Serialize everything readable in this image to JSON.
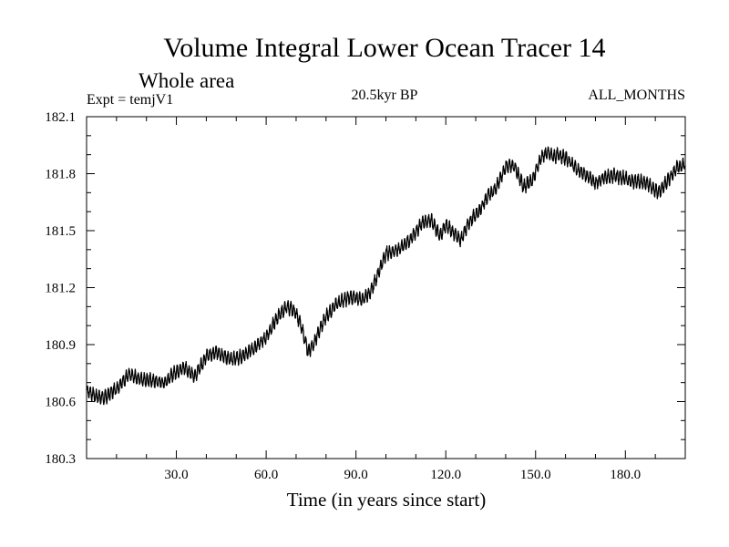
{
  "chart_data": {
    "type": "line",
    "title": "Volume Integral Lower Ocean Tracer 14",
    "subtitle": "Whole area",
    "experiment": "Expt = temjV1",
    "period": "20.5kyr BP",
    "months": "ALL_MONTHS",
    "xlabel": "Time (in years since start)",
    "ylabel": "",
    "xlim": [
      0,
      200
    ],
    "ylim": [
      180.3,
      182.1
    ],
    "x_ticks": [
      30,
      60,
      90,
      120,
      150,
      180
    ],
    "x_tick_labels": [
      "30.0",
      "60.0",
      "90.0",
      "120.0",
      "150.0",
      "180.0"
    ],
    "y_ticks": [
      180.3,
      180.6,
      180.9,
      181.2,
      181.5,
      181.8,
      182.1
    ],
    "y_tick_labels": [
      "180.3",
      "180.6",
      "180.9",
      "181.2",
      "181.5",
      "181.8",
      "182.1"
    ],
    "legend": "none",
    "grid": false,
    "series": [
      {
        "name": "Volume Integral Lower Ocean Tracer 14",
        "seasonal_amplitude": 0.03,
        "x": [
          0,
          3,
          6,
          10,
          14,
          18,
          22,
          26,
          30,
          33,
          36,
          40,
          44,
          48,
          52,
          56,
          60,
          64,
          67,
          70,
          72,
          74,
          76,
          80,
          84,
          88,
          92,
          95,
          100,
          104,
          108,
          112,
          115,
          118,
          120,
          122,
          125,
          128,
          131,
          134,
          137,
          140,
          143,
          146,
          149,
          152,
          154,
          156,
          158,
          161,
          164,
          167,
          170,
          173,
          176,
          179,
          182,
          185,
          188,
          191,
          194,
          197,
          200
        ],
        "y": [
          180.66,
          180.63,
          180.62,
          180.67,
          180.74,
          180.72,
          180.71,
          180.7,
          180.76,
          180.78,
          180.73,
          180.84,
          180.86,
          180.82,
          180.84,
          180.88,
          180.94,
          181.05,
          181.1,
          181.07,
          180.98,
          180.86,
          180.91,
          181.05,
          181.12,
          181.15,
          181.14,
          181.18,
          181.38,
          181.4,
          181.45,
          181.54,
          181.56,
          181.47,
          181.53,
          181.5,
          181.45,
          181.55,
          181.6,
          181.68,
          181.73,
          181.84,
          181.84,
          181.73,
          181.77,
          181.89,
          181.91,
          181.89,
          181.9,
          181.87,
          181.82,
          181.79,
          181.75,
          181.78,
          181.79,
          181.78,
          181.76,
          181.76,
          181.74,
          181.7,
          181.76,
          181.83,
          181.85
        ]
      }
    ]
  }
}
